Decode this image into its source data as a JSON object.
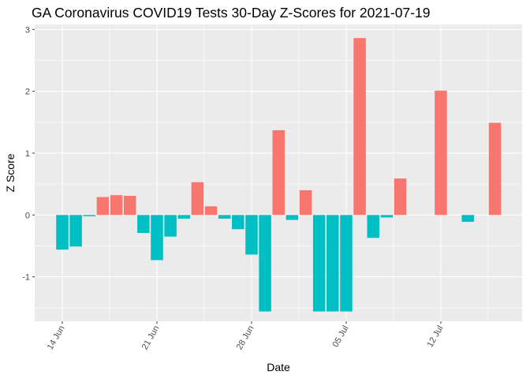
{
  "chart_data": {
    "type": "bar",
    "title": "GA Coronavirus COVID19 Tests 30-Day Z-Scores for 2021-07-19",
    "xlabel": "Date",
    "ylabel": "Z Score",
    "ylim": [
      -1.72,
      3.08
    ],
    "y_ticks": [
      -1,
      0,
      1,
      2,
      3
    ],
    "x_ticks": [
      {
        "label": "14 Jun",
        "day": 0
      },
      {
        "label": "21 Jun",
        "day": 7
      },
      {
        "label": "28 Jun",
        "day": 14
      },
      {
        "label": "05 Jul",
        "day": 21
      },
      {
        "label": "12 Jul",
        "day": 28
      }
    ],
    "colors": {
      "positive": "#F8766D",
      "negative": "#00BFC4",
      "panel": "#EBEBEB",
      "grid": "#FFFFFF"
    },
    "bars": [
      {
        "date": "2021-06-14",
        "day": 0,
        "value": -0.56
      },
      {
        "date": "2021-06-15",
        "day": 1,
        "value": -0.51
      },
      {
        "date": "2021-06-16",
        "day": 2,
        "value": -0.02
      },
      {
        "date": "2021-06-17",
        "day": 3,
        "value": 0.29
      },
      {
        "date": "2021-06-18",
        "day": 4,
        "value": 0.32
      },
      {
        "date": "2021-06-19",
        "day": 5,
        "value": 0.31
      },
      {
        "date": "2021-06-20",
        "day": 6,
        "value": -0.29
      },
      {
        "date": "2021-06-21",
        "day": 7,
        "value": -0.73
      },
      {
        "date": "2021-06-22",
        "day": 8,
        "value": -0.35
      },
      {
        "date": "2021-06-23",
        "day": 9,
        "value": -0.06
      },
      {
        "date": "2021-06-24",
        "day": 10,
        "value": 0.53
      },
      {
        "date": "2021-06-25",
        "day": 11,
        "value": 0.14
      },
      {
        "date": "2021-06-26",
        "day": 12,
        "value": -0.06
      },
      {
        "date": "2021-06-27",
        "day": 13,
        "value": -0.23
      },
      {
        "date": "2021-06-28",
        "day": 14,
        "value": -0.64
      },
      {
        "date": "2021-06-29",
        "day": 15,
        "value": -1.56
      },
      {
        "date": "2021-06-30",
        "day": 16,
        "value": 1.37
      },
      {
        "date": "2021-07-01",
        "day": 17,
        "value": -0.08
      },
      {
        "date": "2021-07-02",
        "day": 18,
        "value": 0.4
      },
      {
        "date": "2021-07-03",
        "day": 19,
        "value": -1.56
      },
      {
        "date": "2021-07-04",
        "day": 20,
        "value": -1.56
      },
      {
        "date": "2021-07-05",
        "day": 21,
        "value": -1.56
      },
      {
        "date": "2021-07-06",
        "day": 22,
        "value": 2.86
      },
      {
        "date": "2021-07-07",
        "day": 23,
        "value": -0.37
      },
      {
        "date": "2021-07-08",
        "day": 24,
        "value": -0.04
      },
      {
        "date": "2021-07-09",
        "day": 25,
        "value": 0.59
      },
      {
        "date": "2021-07-12",
        "day": 28,
        "value": 2.01
      },
      {
        "date": "2021-07-14",
        "day": 30,
        "value": -0.11
      },
      {
        "date": "2021-07-16",
        "day": 32,
        "value": 1.49
      }
    ]
  }
}
